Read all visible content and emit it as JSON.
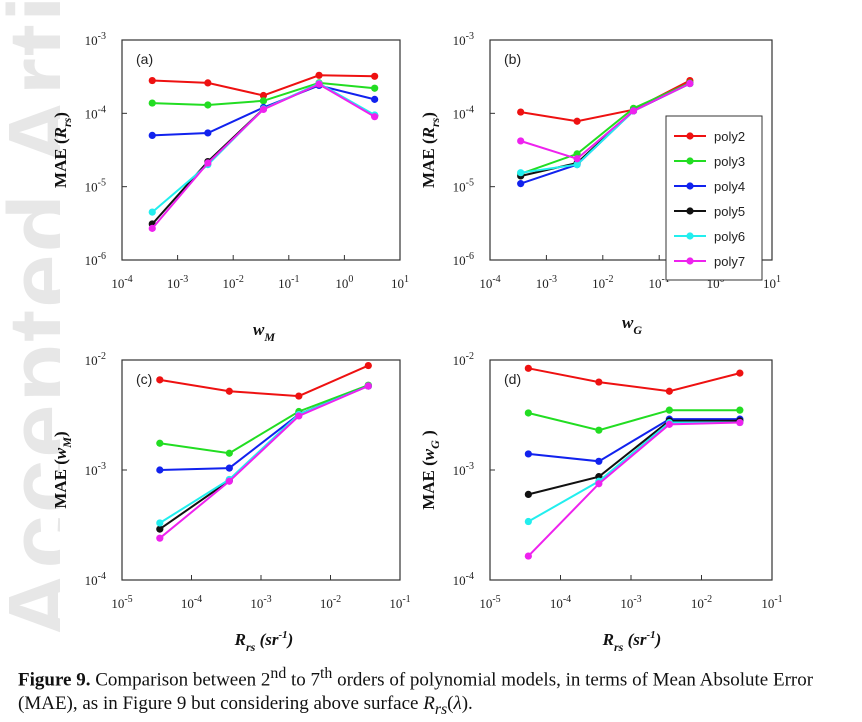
{
  "watermark": "Accepted Article",
  "caption": {
    "label": "Figure 9.",
    "text_a": " Comparison between 2",
    "sup1": "nd",
    "text_b": " to 7",
    "sup2": "th",
    "text_c": " orders of polynomial models, in terms of Mean Absolute Error (MAE), as in Figure 9 but considering above surface ",
    "var": "R",
    "sub": "rs",
    "text_d": "(",
    "lambda": "λ",
    "text_e": ")."
  },
  "colors": {
    "poly2": "#ee1111",
    "poly3": "#22dd22",
    "poly4": "#1122ee",
    "poly5": "#111111",
    "poly6": "#22eeee",
    "poly7": "#ee22ee"
  },
  "legend": {
    "entries": [
      {
        "name": "poly2",
        "label": "poly2"
      },
      {
        "name": "poly3",
        "label": "poly3"
      },
      {
        "name": "poly4",
        "label": "poly4"
      },
      {
        "name": "poly5",
        "label": "poly5"
      },
      {
        "name": "poly6",
        "label": "poly6"
      },
      {
        "name": "poly7",
        "label": "poly7"
      }
    ]
  },
  "chart_data": [
    {
      "type": "line",
      "panel": "(a)",
      "xscale": "log",
      "yscale": "log",
      "xlim": [
        0.0001,
        10
      ],
      "ylim": [
        1e-06,
        0.001
      ],
      "xticks": [
        {
          "v": 0.0001,
          "b": "10",
          "e": "-4"
        },
        {
          "v": 0.001,
          "b": "10",
          "e": "-3"
        },
        {
          "v": 0.01,
          "b": "10",
          "e": "-2"
        },
        {
          "v": 0.1,
          "b": "10",
          "e": "-1"
        },
        {
          "v": 1,
          "b": "10",
          "e": "0"
        },
        {
          "v": 10,
          "b": "10",
          "e": "1"
        }
      ],
      "yticks": [
        {
          "v": 1e-06,
          "b": "10",
          "e": "-6"
        },
        {
          "v": 1e-05,
          "b": "10",
          "e": "-5"
        },
        {
          "v": 0.0001,
          "b": "10",
          "e": "-4"
        },
        {
          "v": 0.001,
          "b": "10",
          "e": "-3"
        }
      ],
      "xlabel": {
        "base": "w",
        "sub": "M",
        "sup": "",
        "tail": "",
        "italic": true
      },
      "ylabel": {
        "pre": "MAE (",
        "base": "R",
        "sub": "rs",
        "tail": ")"
      },
      "x": [
        0.00035,
        0.0035,
        0.035,
        0.35,
        3.5
      ],
      "series": [
        {
          "name": "poly2",
          "values": [
            0.00028,
            0.00026,
            0.000175,
            0.00033,
            0.00032
          ]
        },
        {
          "name": "poly3",
          "values": [
            0.000138,
            0.00013,
            0.000148,
            0.00026,
            0.00022
          ]
        },
        {
          "name": "poly4",
          "values": [
            5e-05,
            5.4e-05,
            0.00012,
            0.00024,
            0.000155
          ]
        },
        {
          "name": "poly5",
          "values": [
            3.1e-06,
            2.2e-05,
            0.000115,
            0.00025,
            9.3e-05
          ]
        },
        {
          "name": "poly6",
          "values": [
            4.5e-06,
            2e-05,
            0.000115,
            0.000255,
            9.5e-05
          ]
        },
        {
          "name": "poly7",
          "values": [
            2.7e-06,
            2.1e-05,
            0.000113,
            0.00025,
            9e-05
          ]
        }
      ]
    },
    {
      "type": "line",
      "panel": "(b)",
      "xscale": "log",
      "yscale": "log",
      "xlim": [
        0.0001,
        10
      ],
      "ylim": [
        1e-06,
        0.001
      ],
      "xticks": [
        {
          "v": 0.0001,
          "b": "10",
          "e": "-4"
        },
        {
          "v": 0.001,
          "b": "10",
          "e": "-3"
        },
        {
          "v": 0.01,
          "b": "10",
          "e": "-2"
        },
        {
          "v": 0.1,
          "b": "10",
          "e": "-1"
        },
        {
          "v": 1,
          "b": "10",
          "e": "0"
        },
        {
          "v": 10,
          "b": "10",
          "e": "1"
        }
      ],
      "yticks": [
        {
          "v": 1e-06,
          "b": "10",
          "e": "-6"
        },
        {
          "v": 1e-05,
          "b": "10",
          "e": "-5"
        },
        {
          "v": 0.0001,
          "b": "10",
          "e": "-4"
        },
        {
          "v": 0.001,
          "b": "10",
          "e": "-3"
        }
      ],
      "xlabel": {
        "base": "w",
        "sub": "G",
        "sup": "",
        "tail": "",
        "italic": true
      },
      "ylabel": {
        "pre": "MAE (",
        "base": "R",
        "sub": "rs",
        "tail": ")"
      },
      "x": [
        0.00035,
        0.0035,
        0.035,
        0.35
      ],
      "legend_position": "right-middle",
      "series": [
        {
          "name": "poly2",
          "values": [
            0.000104,
            7.8e-05,
            0.000112,
            0.00028
          ]
        },
        {
          "name": "poly3",
          "values": [
            1.5e-05,
            2.8e-05,
            0.000117,
            0.00026
          ]
        },
        {
          "name": "poly4",
          "values": [
            1.1e-05,
            2e-05,
            0.000108,
            0.000255
          ]
        },
        {
          "name": "poly5",
          "values": [
            1.4e-05,
            2.1e-05,
            0.000108,
            0.000255
          ]
        },
        {
          "name": "poly6",
          "values": [
            1.55e-05,
            2e-05,
            0.000108,
            0.000255
          ]
        },
        {
          "name": "poly7",
          "values": [
            4.2e-05,
            2.4e-05,
            0.000108,
            0.000255
          ]
        }
      ]
    },
    {
      "type": "line",
      "panel": "(c)",
      "xscale": "log",
      "yscale": "log",
      "xlim": [
        1e-05,
        0.1
      ],
      "ylim": [
        0.0001,
        0.01
      ],
      "xticks": [
        {
          "v": 1e-05,
          "b": "10",
          "e": "-5"
        },
        {
          "v": 0.0001,
          "b": "10",
          "e": "-4"
        },
        {
          "v": 0.001,
          "b": "10",
          "e": "-3"
        },
        {
          "v": 0.01,
          "b": "10",
          "e": "-2"
        },
        {
          "v": 0.1,
          "b": "10",
          "e": "-1"
        }
      ],
      "yticks": [
        {
          "v": 0.0001,
          "b": "10",
          "e": "-4"
        },
        {
          "v": 0.001,
          "b": "10",
          "e": "-3"
        },
        {
          "v": 0.01,
          "b": "10",
          "e": "-2"
        }
      ],
      "xlabel": {
        "base": "R",
        "sub": "rs",
        "sup": "-1",
        "pre_tail": " (sr",
        "tail": ")",
        "italic": true
      },
      "ylabel": {
        "pre": "MAE (",
        "base": "w",
        "sub": "M",
        "tail": ")"
      },
      "x": [
        3.5e-05,
        0.00035,
        0.0035,
        0.035
      ],
      "series": [
        {
          "name": "poly2",
          "values": [
            0.0066,
            0.0052,
            0.0047,
            0.0089
          ]
        },
        {
          "name": "poly3",
          "values": [
            0.00175,
            0.00142,
            0.0034,
            0.0059
          ]
        },
        {
          "name": "poly4",
          "values": [
            0.001,
            0.00104,
            0.0032,
            0.0058
          ]
        },
        {
          "name": "poly5",
          "values": [
            0.00029,
            0.0008,
            0.0032,
            0.0058
          ]
        },
        {
          "name": "poly6",
          "values": [
            0.00033,
            0.00082,
            0.0032,
            0.0058
          ]
        },
        {
          "name": "poly7",
          "values": [
            0.00024,
            0.00079,
            0.0031,
            0.0058
          ]
        }
      ]
    },
    {
      "type": "line",
      "panel": "(d)",
      "xscale": "log",
      "yscale": "log",
      "xlim": [
        1e-05,
        0.1
      ],
      "ylim": [
        0.0001,
        0.01
      ],
      "xticks": [
        {
          "v": 1e-05,
          "b": "10",
          "e": "-5"
        },
        {
          "v": 0.0001,
          "b": "10",
          "e": "-4"
        },
        {
          "v": 0.001,
          "b": "10",
          "e": "-3"
        },
        {
          "v": 0.01,
          "b": "10",
          "e": "-2"
        },
        {
          "v": 0.1,
          "b": "10",
          "e": "-1"
        }
      ],
      "yticks": [
        {
          "v": 0.0001,
          "b": "10",
          "e": "-4"
        },
        {
          "v": 0.001,
          "b": "10",
          "e": "-3"
        },
        {
          "v": 0.01,
          "b": "10",
          "e": "-2"
        }
      ],
      "xlabel": {
        "base": "R",
        "sub": "rs",
        "sup": "-1",
        "pre_tail": " (sr",
        "tail": ")",
        "italic": true
      },
      "ylabel": {
        "pre": "MAE (",
        "base": "w",
        "sub": "G",
        "tail": " )"
      },
      "x": [
        3.5e-05,
        0.00035,
        0.0035,
        0.035
      ],
      "series": [
        {
          "name": "poly2",
          "values": [
            0.0084,
            0.0063,
            0.0052,
            0.0076
          ]
        },
        {
          "name": "poly3",
          "values": [
            0.0033,
            0.0023,
            0.0035,
            0.0035
          ]
        },
        {
          "name": "poly4",
          "values": [
            0.0014,
            0.0012,
            0.0029,
            0.0029
          ]
        },
        {
          "name": "poly5",
          "values": [
            0.0006,
            0.00087,
            0.0028,
            0.0028
          ]
        },
        {
          "name": "poly6",
          "values": [
            0.00034,
            0.00079,
            0.0027,
            0.0027
          ]
        },
        {
          "name": "poly7",
          "values": [
            0.000165,
            0.00075,
            0.0026,
            0.0027
          ]
        }
      ]
    }
  ]
}
